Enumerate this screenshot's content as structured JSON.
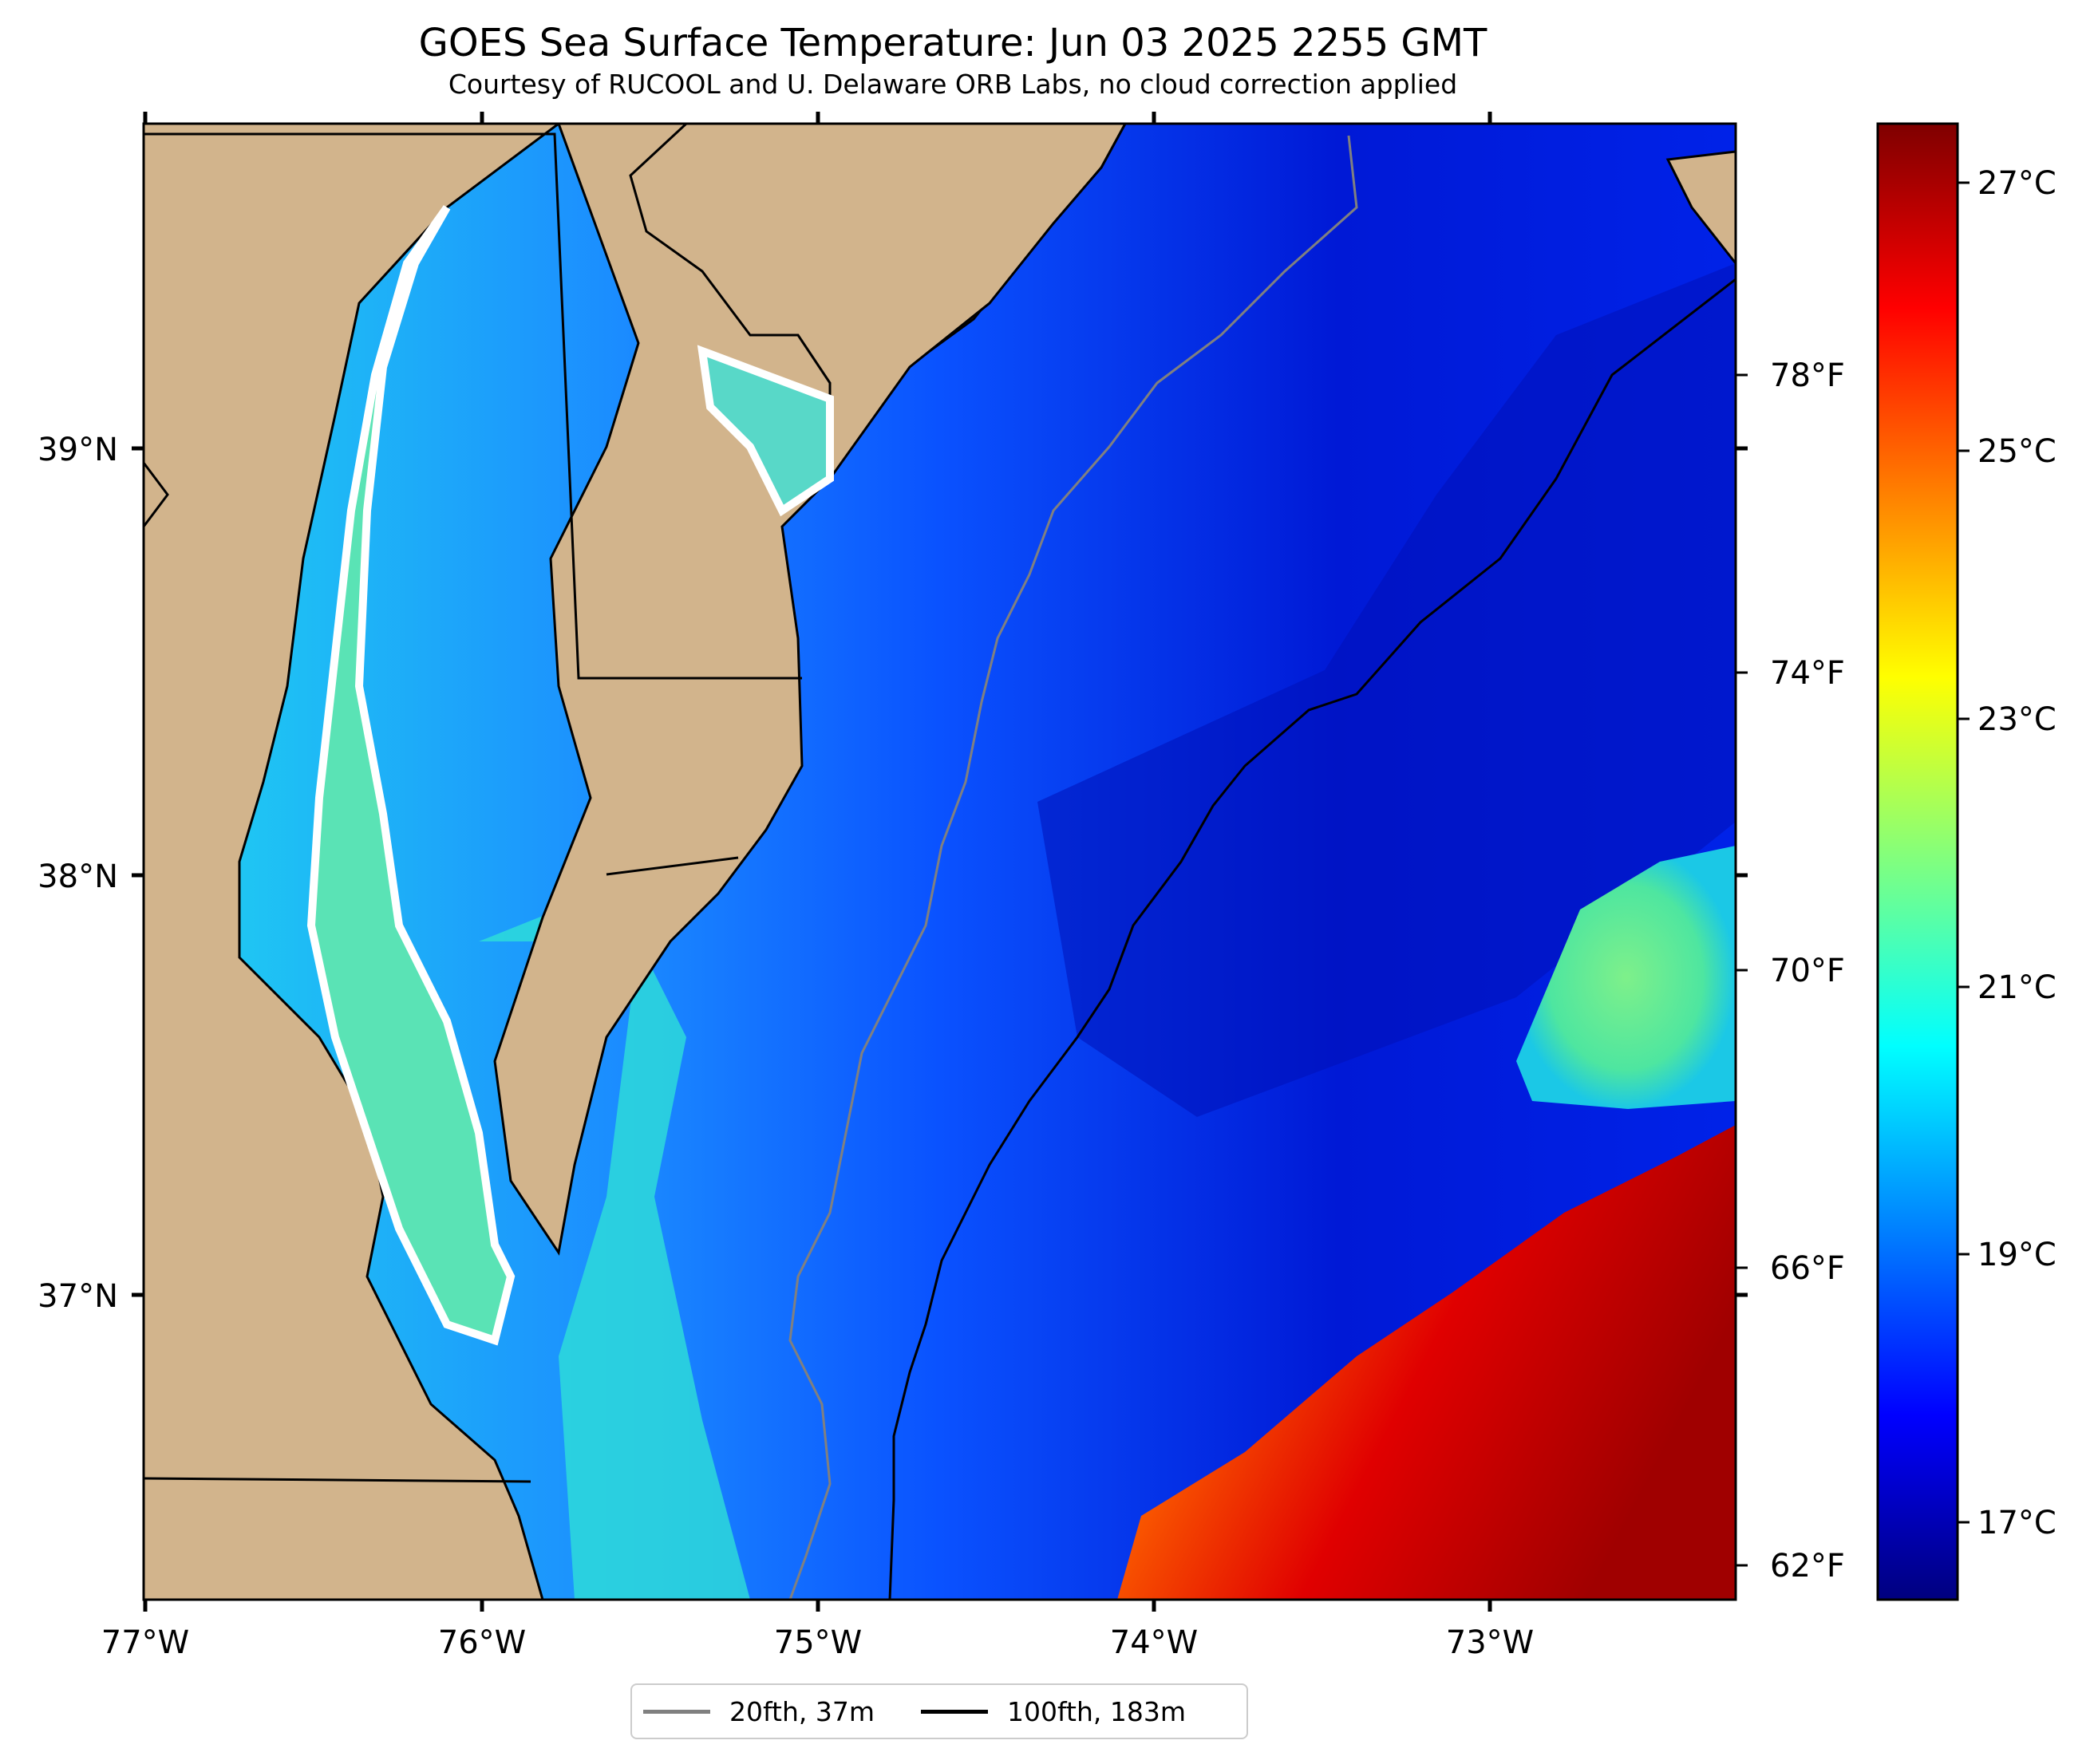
{
  "title": "GOES Sea Surface Temperature: Jun 03 2025 2255 GMT",
  "subtitle": "Courtesy of RUCOOL and U. Delaware ORB Labs, no cloud correction applied",
  "map": {
    "extent": {
      "lon": [
        -77.0,
        -72.27
      ],
      "lat": [
        36.27,
        39.73
      ]
    },
    "lon_ticks": [
      {
        "value": -77,
        "label": "77°W"
      },
      {
        "value": -76,
        "label": "76°W"
      },
      {
        "value": -75,
        "label": "75°W"
      },
      {
        "value": -74,
        "label": "74°W"
      },
      {
        "value": -73,
        "label": "73°W"
      }
    ],
    "lat_ticks": [
      {
        "value": 39,
        "label": "39°N"
      },
      {
        "value": 38,
        "label": "38°N"
      },
      {
        "value": 37,
        "label": "37°N"
      }
    ],
    "colors": {
      "land": "#d2b48c",
      "no_data": "#ffffff",
      "isobath_20": "#808080",
      "isobath_100": "#000000"
    }
  },
  "colorbar": {
    "colormap": "jet",
    "range_c": [
      16.0,
      27.5
    ],
    "celsius_ticks": [
      {
        "value": 17,
        "label": "17°C"
      },
      {
        "value": 19,
        "label": "19°C"
      },
      {
        "value": 21,
        "label": "21°C"
      },
      {
        "value": 23,
        "label": "23°C"
      },
      {
        "value": 25,
        "label": "25°C"
      },
      {
        "value": 27,
        "label": "27°C"
      }
    ],
    "fahrenheit_ticks": [
      {
        "value": 62,
        "label": "62°F"
      },
      {
        "value": 66,
        "label": "66°F"
      },
      {
        "value": 70,
        "label": "70°F"
      },
      {
        "value": 74,
        "label": "74°F"
      },
      {
        "value": 78,
        "label": "78°F"
      }
    ]
  },
  "legend": {
    "items": [
      {
        "label": "20fth, 37m",
        "color": "#808080"
      },
      {
        "label": "100fth, 183m",
        "color": "#000000"
      }
    ]
  }
}
